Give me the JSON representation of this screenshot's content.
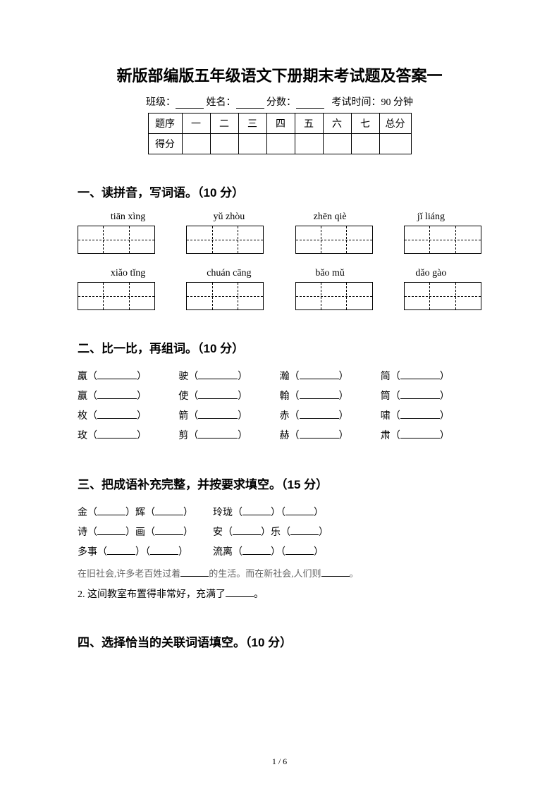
{
  "title": "新版部编版五年级语文下册期末考试题及答案一",
  "header": {
    "class_label": "班级：",
    "name_label": "姓名：",
    "score_label": "分数：",
    "time_label": "考试时间：90 分钟"
  },
  "score_table": {
    "row1_label": "题序",
    "cols": [
      "一",
      "二",
      "三",
      "四",
      "五",
      "六",
      "七",
      "总分"
    ],
    "row2_label": "得分"
  },
  "section1": {
    "title": "一、读拼音，写词语。（10 分）",
    "row1_pinyin": [
      "tiān xìng",
      "yǔ zhòu",
      "zhēn qiè",
      "jǐ  liáng"
    ],
    "row2_pinyin": [
      "xiǎo tǐng",
      "chuán cāng",
      "bǎo mǔ",
      "dǎo gào"
    ],
    "box_cells": 3
  },
  "section2": {
    "title": "二、比一比，再组词。（10 分）",
    "rows": [
      [
        "羸",
        "驶",
        "瀚",
        "简"
      ],
      [
        "赢",
        "使",
        "翰",
        "筒"
      ],
      [
        "枚",
        "箭",
        "赤",
        "啸"
      ],
      [
        "玫",
        "剪",
        "赫",
        "肃"
      ]
    ]
  },
  "section3": {
    "title": "三、把成语补充完整，并按要求填空。（15 分）",
    "line1a": "金（",
    "line1b": "）辉（",
    "line1c": "）",
    "line1d": "玲珑（",
    "line1e": "）（",
    "line1f": "）",
    "line2a": "诗（",
    "line2b": "）画（",
    "line2c": "）",
    "line2d": "安（",
    "line2e": "）乐（",
    "line2f": "）",
    "line3a": "多事（",
    "line3b": "）（",
    "line3c": "）",
    "line3d": "流离（",
    "line3e": "）（",
    "line3f": "）",
    "sentence1_a": "在旧社会,许多老百姓过着",
    "sentence1_b": "的生活。而在新社会,人们则",
    "sentence1_c": "。",
    "sentence2_a": "2. 这间教室布置得非常好，充满了",
    "sentence2_b": "。"
  },
  "section4": {
    "title": "四、选择恰当的关联词语填空。（10 分）"
  },
  "page_num": "1 / 6"
}
